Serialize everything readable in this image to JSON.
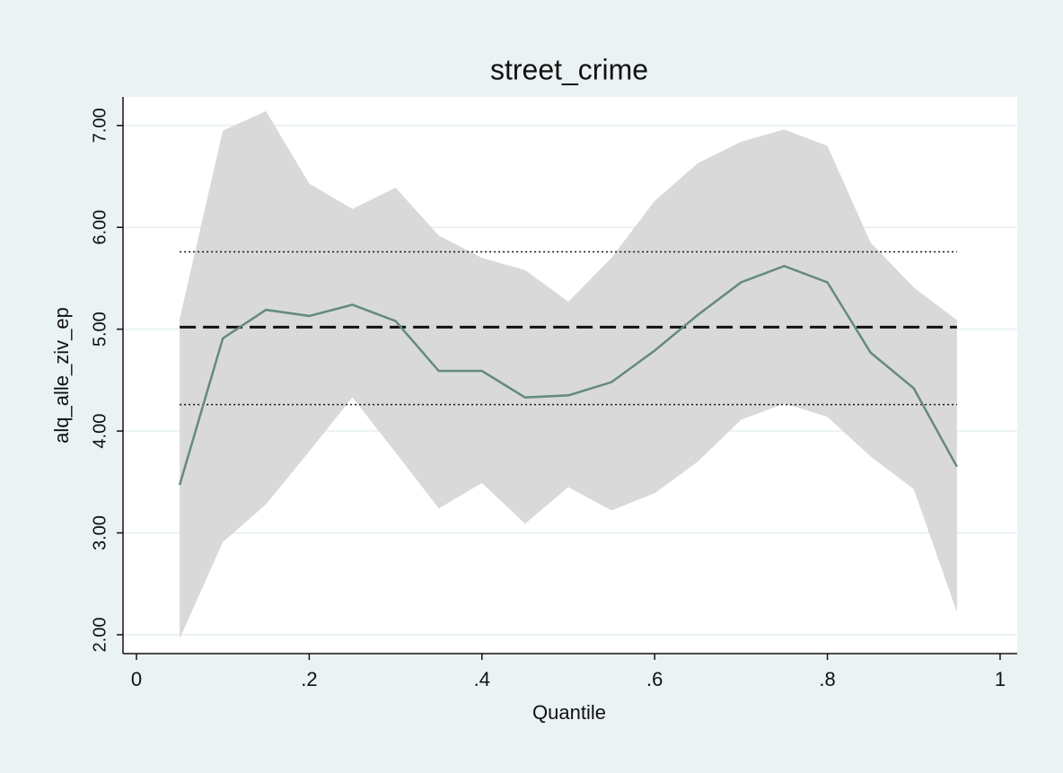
{
  "chart_data": {
    "type": "line",
    "title": "street_crime",
    "x_label": "Quantile",
    "y_label": "alq_alle_ziv_ep",
    "x": [
      0.05,
      0.1,
      0.15,
      0.2,
      0.25,
      0.3,
      0.35,
      0.4,
      0.45,
      0.5,
      0.55,
      0.6,
      0.65,
      0.7,
      0.75,
      0.8,
      0.85,
      0.9,
      0.95
    ],
    "series": [
      {
        "color": "#648a7c",
        "values": [
          3.47,
          4.91,
          5.19,
          5.13,
          5.24,
          5.08,
          4.59,
          4.59,
          4.33,
          4.35,
          4.48,
          4.79,
          5.14,
          5.46,
          5.62,
          5.46,
          4.77,
          4.42,
          3.65
        ]
      }
    ],
    "band": {
      "color": "#d9d9d9",
      "upper": [
        5.1,
        6.95,
        7.14,
        6.43,
        6.18,
        6.39,
        5.92,
        5.7,
        5.58,
        5.27,
        5.7,
        6.26,
        6.63,
        6.84,
        6.96,
        6.8,
        5.85,
        5.41,
        5.09
      ],
      "lower": [
        1.96,
        2.91,
        3.28,
        3.8,
        4.33,
        3.79,
        3.24,
        3.49,
        3.09,
        3.45,
        3.22,
        3.39,
        3.7,
        4.11,
        4.27,
        4.14,
        3.75,
        3.43,
        2.22
      ]
    },
    "reference_lines": [
      {
        "value": 5.02,
        "style": "dashed"
      },
      {
        "value": 5.76,
        "style": "dotted"
      },
      {
        "value": 4.26,
        "style": "dotted"
      }
    ],
    "xlim": [
      -0.0156,
      1.0198
    ],
    "ylim": [
      1.815,
      7.28
    ],
    "xticks": [
      0,
      {
        "value": 0.2,
        "label": ".2"
      },
      {
        "value": 0.4,
        "label": ".4"
      },
      {
        "value": 0.6,
        "label": ".6"
      },
      {
        "value": 0.8,
        "label": ".8"
      },
      1
    ],
    "yticks": [
      {
        "value": 2,
        "label": "2.00"
      },
      {
        "value": 3,
        "label": "3.00"
      },
      {
        "value": 4,
        "label": "4.00"
      },
      {
        "value": 5,
        "label": "5.00"
      },
      {
        "value": 6,
        "label": "6.00"
      },
      {
        "value": 7,
        "label": "7.00"
      }
    ],
    "grid": true
  }
}
